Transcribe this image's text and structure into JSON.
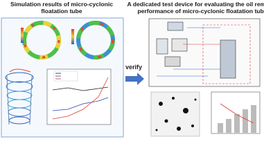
{
  "header": {
    "left_title": [
      "Simulation results of micro-cyclonic",
      "floatation tube"
    ],
    "right_title": [
      "A dedicated test device for evaluating the oil removal",
      "performance of micro-cyclonic floatation tube"
    ]
  },
  "arrow_label": "verify"
}
